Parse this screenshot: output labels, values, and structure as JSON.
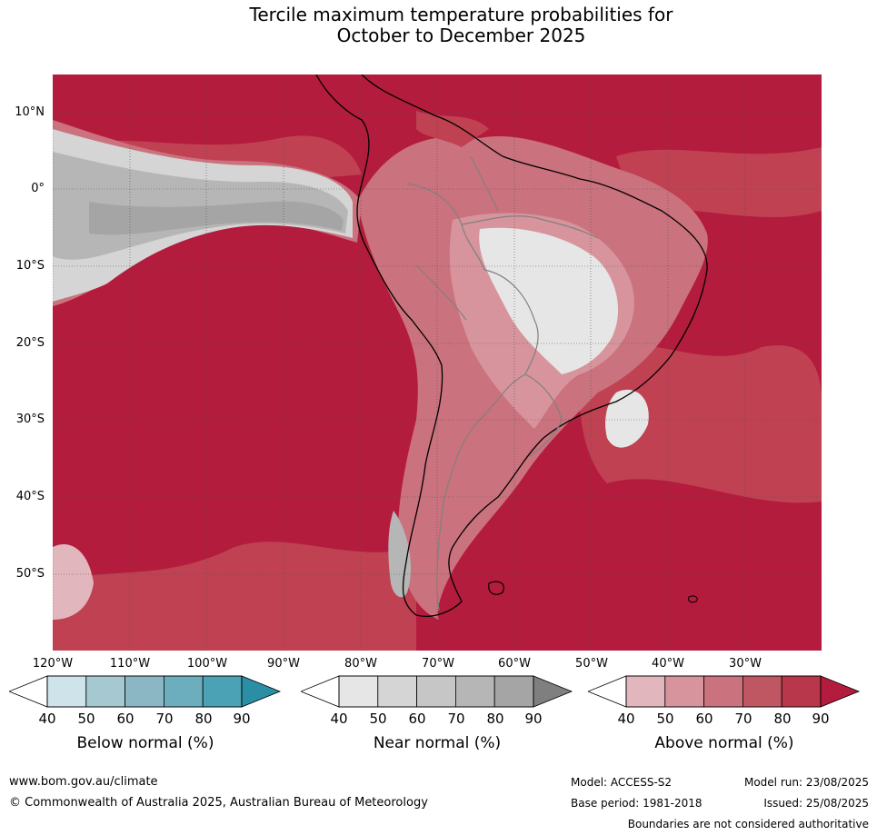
{
  "title_line1": "Tercile maximum temperature probabilities for",
  "title_line2": "October to December 2025",
  "lat_labels": [
    "10°N",
    "0°",
    "10°S",
    "20°S",
    "30°S",
    "40°S",
    "50°S"
  ],
  "lon_labels": [
    "120°W",
    "110°W",
    "100°W",
    "90°W",
    "80°W",
    "70°W",
    "60°W",
    "50°W",
    "40°W",
    "30°W"
  ],
  "colorbars": [
    {
      "label": "Below normal (%)",
      "ticks": [
        "40",
        "50",
        "60",
        "70",
        "80",
        "90"
      ],
      "colors": [
        "#cfe3ea",
        "#a6c8d1",
        "#8bb7c4",
        "#6caebe",
        "#4aa2b4",
        "#2a8ea4"
      ]
    },
    {
      "label": "Near normal (%)",
      "ticks": [
        "40",
        "50",
        "60",
        "70",
        "80",
        "90"
      ],
      "colors": [
        "#e6e6e6",
        "#d5d5d5",
        "#c6c6c6",
        "#b6b6b6",
        "#a5a5a5",
        "#7f7f7f"
      ]
    },
    {
      "label": "Above normal (%)",
      "ticks": [
        "40",
        "50",
        "60",
        "70",
        "80",
        "90"
      ],
      "colors": [
        "#e2b6bd",
        "#d7949c",
        "#ca727d",
        "#bf5763",
        "#b8374a",
        "#b31c3c"
      ]
    }
  ],
  "footer": {
    "url": "www.bom.gov.au/climate",
    "copyright": "© Commonwealth of Australia 2025, Australian Bureau of Meteorology",
    "model": "Model: ACCESS-S2",
    "base_period": "Base period: 1981-2018",
    "model_run": "Model run: 23/08/2025",
    "issued": "Issued: 25/08/2025",
    "disclaimer": "Boundaries are not considered authoritative"
  },
  "colors": {
    "above_high": "#b31c3c",
    "above_mid": "#bf4152",
    "near": "#a5a5a5"
  }
}
